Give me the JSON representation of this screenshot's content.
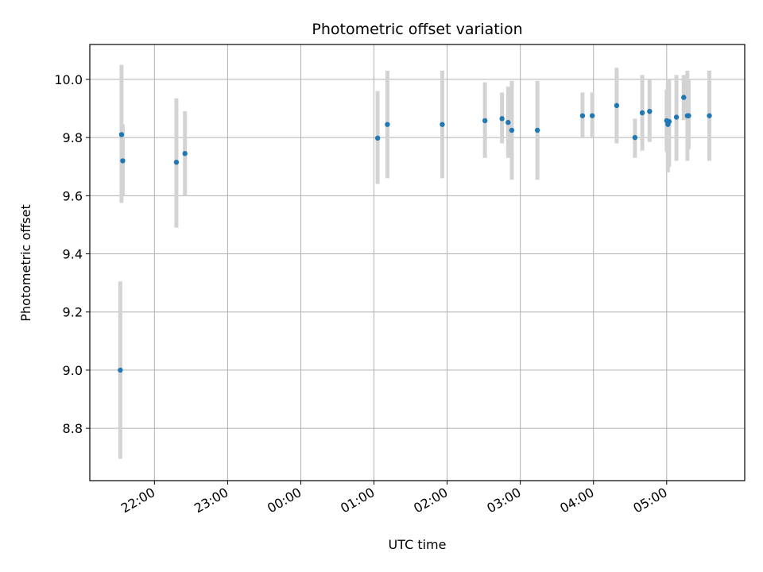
{
  "chart_data": {
    "type": "scatter",
    "title": "Photometric offset variation",
    "xlabel": "UTC time",
    "ylabel": "Photometric offset",
    "x_ticks": [
      "22:00",
      "23:00",
      "00:00",
      "01:00",
      "02:00",
      "03:00",
      "04:00",
      "05:00"
    ],
    "y_ticks": [
      "8.8",
      "9.0",
      "9.2",
      "9.4",
      "9.6",
      "9.8",
      "10.0"
    ],
    "ylim": [
      8.62,
      10.12
    ],
    "xlim": [
      "21:07",
      "06:04"
    ],
    "grid": true,
    "marker_color": "#1f77b4",
    "errorbar_color": "#d3d3d3",
    "series": [
      {
        "points": [
          {
            "t": "21:33",
            "y": 9.81,
            "lo": 9.575,
            "hi": 10.05
          },
          {
            "t": "21:34",
            "y": 9.72,
            "lo": 9.6,
            "hi": 9.845
          },
          {
            "t": "21:32",
            "y": 9.0,
            "lo": 8.695,
            "hi": 9.305
          },
          {
            "t": "22:18",
            "y": 9.715,
            "lo": 9.49,
            "hi": 9.935
          },
          {
            "t": "22:25",
            "y": 9.745,
            "lo": 9.6,
            "hi": 9.89
          },
          {
            "t": "01:03",
            "y": 9.798,
            "lo": 9.64,
            "hi": 9.96
          },
          {
            "t": "01:11",
            "y": 9.845,
            "lo": 9.66,
            "hi": 10.03
          },
          {
            "t": "01:56",
            "y": 9.845,
            "lo": 9.66,
            "hi": 10.03
          },
          {
            "t": "02:31",
            "y": 9.858,
            "lo": 9.73,
            "hi": 9.99
          },
          {
            "t": "02:45",
            "y": 9.865,
            "lo": 9.78,
            "hi": 9.955
          },
          {
            "t": "02:50",
            "y": 9.852,
            "lo": 9.73,
            "hi": 9.975
          },
          {
            "t": "02:53",
            "y": 9.825,
            "lo": 9.655,
            "hi": 9.995
          },
          {
            "t": "03:14",
            "y": 9.825,
            "lo": 9.655,
            "hi": 9.995
          },
          {
            "t": "03:51",
            "y": 9.875,
            "lo": 9.8,
            "hi": 9.955
          },
          {
            "t": "03:59",
            "y": 9.875,
            "lo": 9.8,
            "hi": 9.955
          },
          {
            "t": "04:19",
            "y": 9.91,
            "lo": 9.78,
            "hi": 10.04
          },
          {
            "t": "04:34",
            "y": 9.8,
            "lo": 9.73,
            "hi": 9.865
          },
          {
            "t": "04:40",
            "y": 9.885,
            "lo": 9.755,
            "hi": 10.015
          },
          {
            "t": "04:46",
            "y": 9.89,
            "lo": 9.785,
            "hi": 10.0
          },
          {
            "t": "05:00",
            "y": 9.858,
            "lo": 9.75,
            "hi": 9.965
          },
          {
            "t": "05:01",
            "y": 9.845,
            "lo": 9.68,
            "hi": 10.0
          },
          {
            "t": "05:02",
            "y": 9.855,
            "lo": 9.7,
            "hi": 10.0
          },
          {
            "t": "05:08",
            "y": 9.87,
            "lo": 9.72,
            "hi": 10.015
          },
          {
            "t": "05:14",
            "y": 9.938,
            "lo": 9.86,
            "hi": 10.015
          },
          {
            "t": "05:17",
            "y": 9.875,
            "lo": 9.72,
            "hi": 10.03
          },
          {
            "t": "05:18",
            "y": 9.875,
            "lo": 9.76,
            "hi": 10.0
          },
          {
            "t": "05:35",
            "y": 9.875,
            "lo": 9.72,
            "hi": 10.03
          }
        ]
      }
    ]
  }
}
